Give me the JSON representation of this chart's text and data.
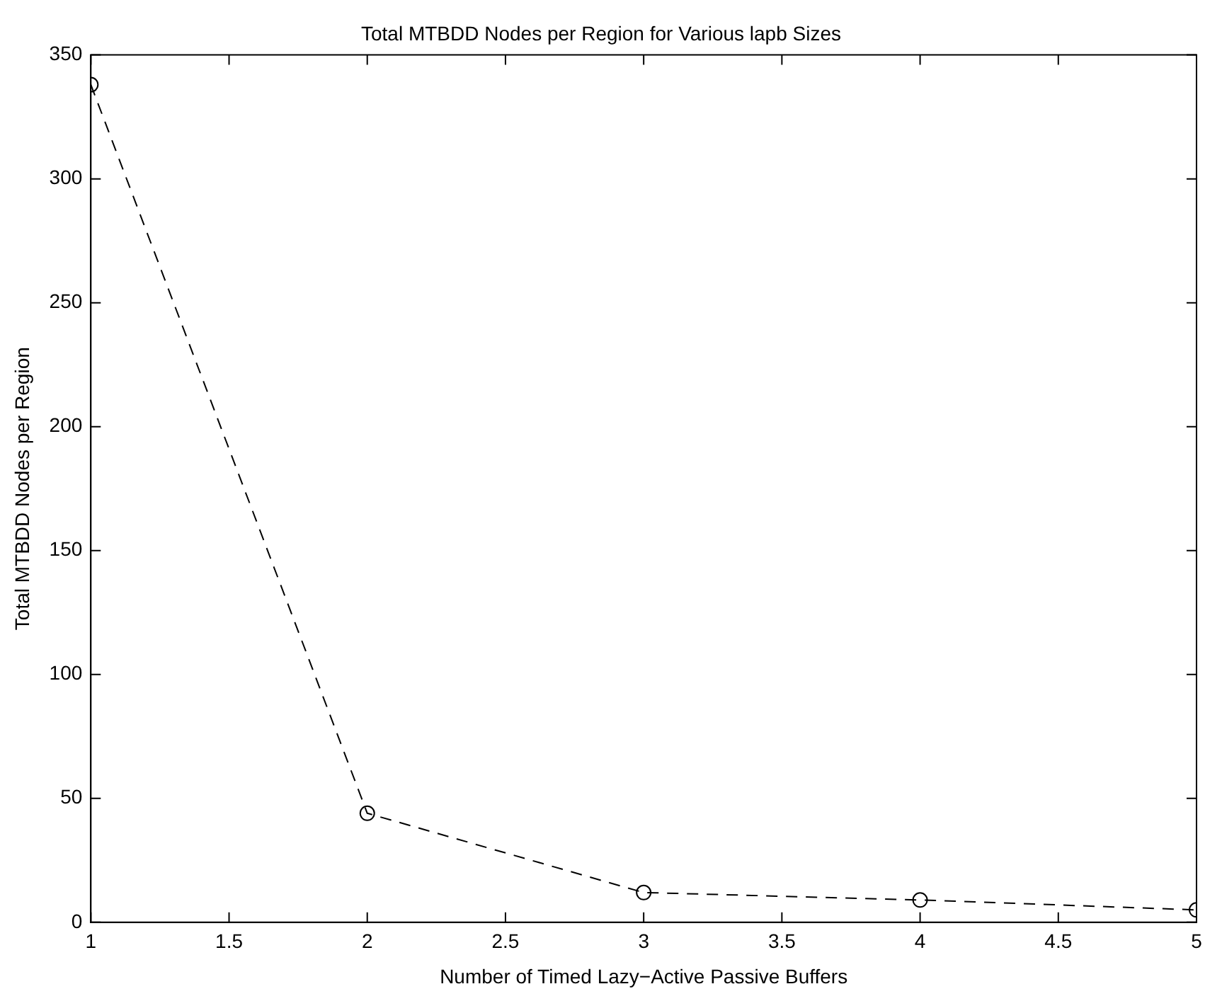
{
  "chart_data": {
    "type": "line",
    "title": "Total MTBDD Nodes per Region for Various lapb Sizes",
    "xlabel": "Number of Timed Lazy−Active Passive Buffers",
    "ylabel": "Total MTBDD Nodes per Region",
    "x": [
      1,
      2,
      3,
      4,
      5
    ],
    "series": [
      {
        "color": "#000000",
        "values": [
          338,
          44,
          12,
          9,
          5
        ]
      }
    ],
    "xlim": [
      1,
      5
    ],
    "xticks": [
      1,
      1.5,
      2,
      2.5,
      3,
      3.5,
      4,
      4.5,
      5
    ],
    "ylim": [
      0,
      350
    ],
    "yticks": [
      0,
      50,
      100,
      150,
      200,
      250,
      300,
      350
    ],
    "grid": false,
    "legend": false,
    "marker": "circle",
    "line_style": "dashed"
  }
}
